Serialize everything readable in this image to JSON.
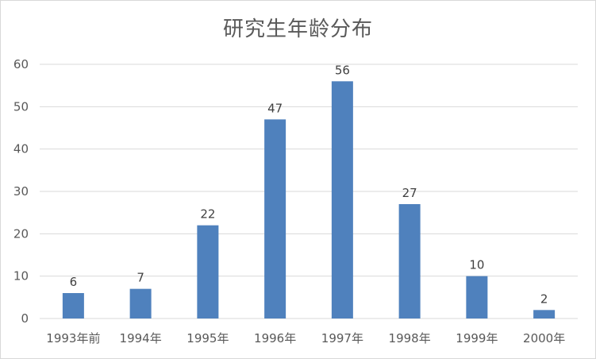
{
  "chart_data": {
    "type": "bar",
    "title": "研究生年龄分布",
    "categories": [
      "1993年前",
      "1994年",
      "1995年",
      "1996年",
      "1997年",
      "1998年",
      "1999年",
      "2000年"
    ],
    "values": [
      6,
      7,
      22,
      47,
      56,
      27,
      10,
      2
    ],
    "data_labels": [
      "6",
      "7",
      "22",
      "47",
      "56",
      "27",
      "10",
      "2"
    ],
    "ylim": [
      0,
      60
    ],
    "yticks": [
      0,
      10,
      20,
      30,
      40,
      50,
      60
    ],
    "grid": true,
    "legend": "none",
    "bar_color": "#4f81bd"
  }
}
